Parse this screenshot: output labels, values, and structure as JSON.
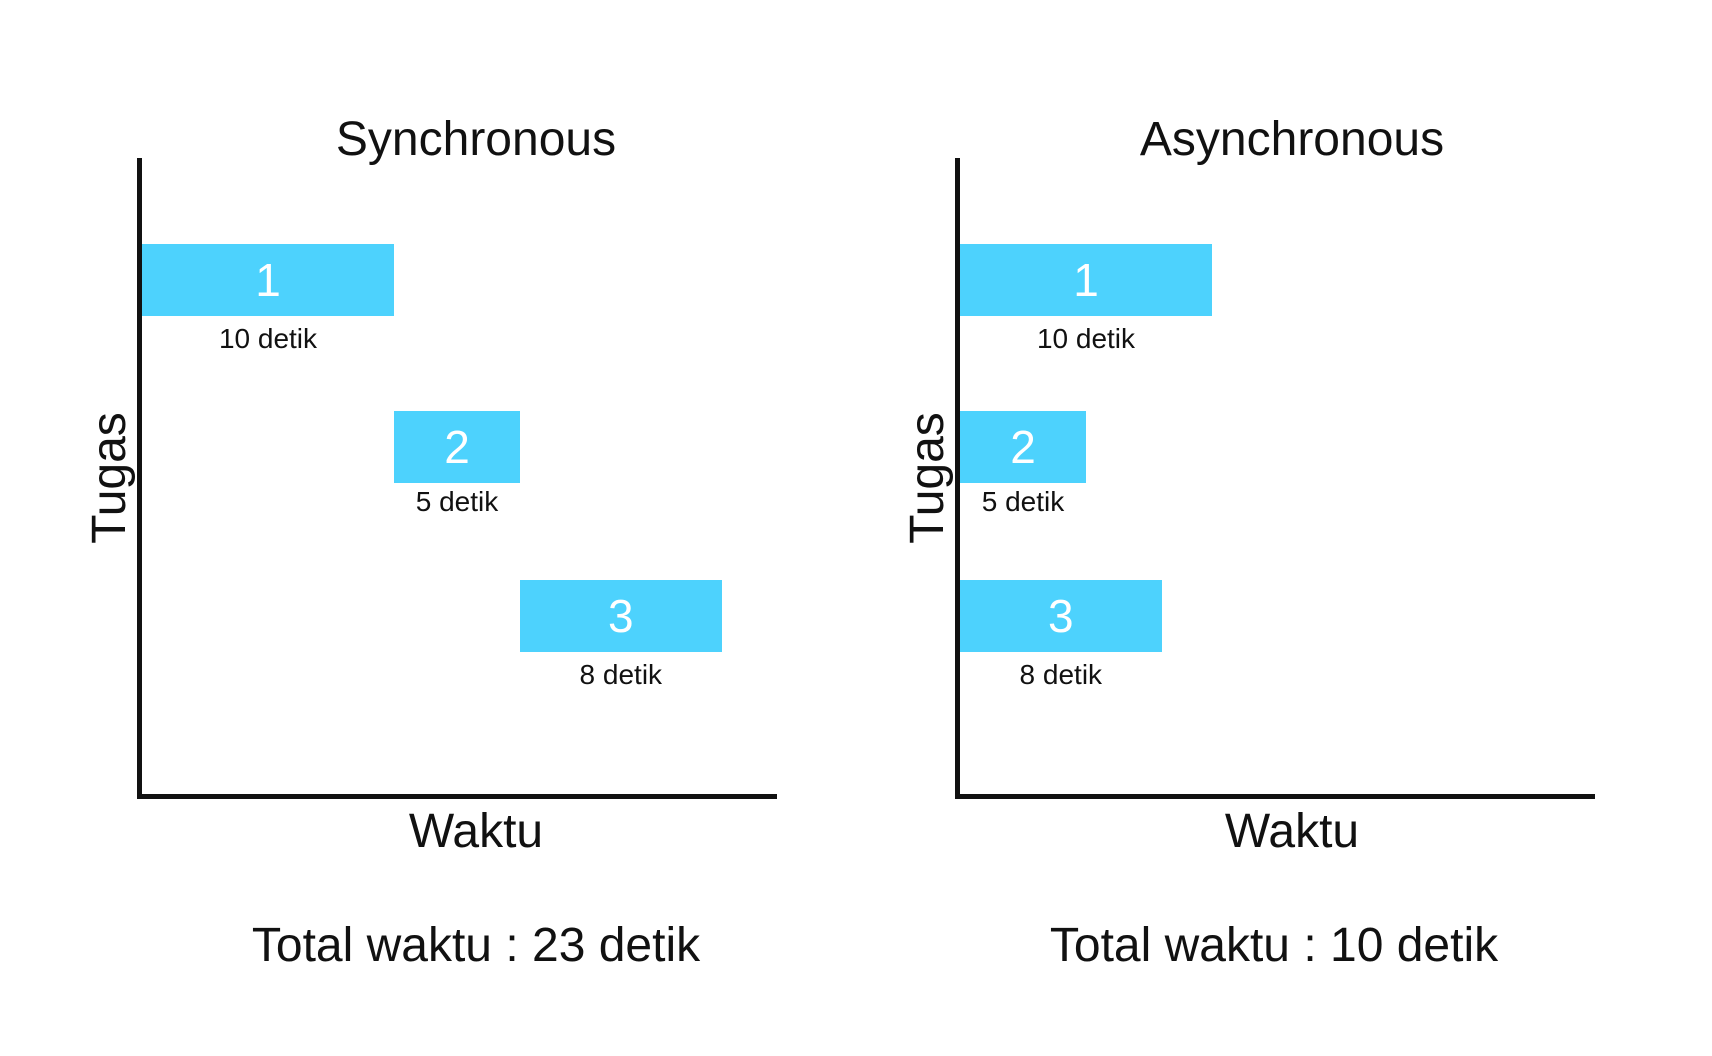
{
  "bar_color": "#4dd2fd",
  "chart_data": [
    {
      "type": "bar",
      "title": "Synchronous",
      "xlabel": "Waktu",
      "ylabel": "Tugas",
      "xlim": [
        0,
        23
      ],
      "tasks": [
        {
          "label": "1",
          "start": 0,
          "duration": 10,
          "duration_label": "10 detik"
        },
        {
          "label": "2",
          "start": 10,
          "duration": 5,
          "duration_label": "5 detik"
        },
        {
          "label": "3",
          "start": 15,
          "duration": 8,
          "duration_label": "8 detik"
        }
      ],
      "total_label": "Total waktu : 23 detik"
    },
    {
      "type": "bar",
      "title": "Asynchronous",
      "xlabel": "Waktu",
      "ylabel": "Tugas",
      "xlim": [
        0,
        23
      ],
      "tasks": [
        {
          "label": "1",
          "start": 0,
          "duration": 10,
          "duration_label": "10 detik"
        },
        {
          "label": "2",
          "start": 0,
          "duration": 5,
          "duration_label": "5 detik"
        },
        {
          "label": "3",
          "start": 0,
          "duration": 8,
          "duration_label": "8 detik"
        }
      ],
      "total_label": "Total waktu : 10 detik"
    }
  ]
}
